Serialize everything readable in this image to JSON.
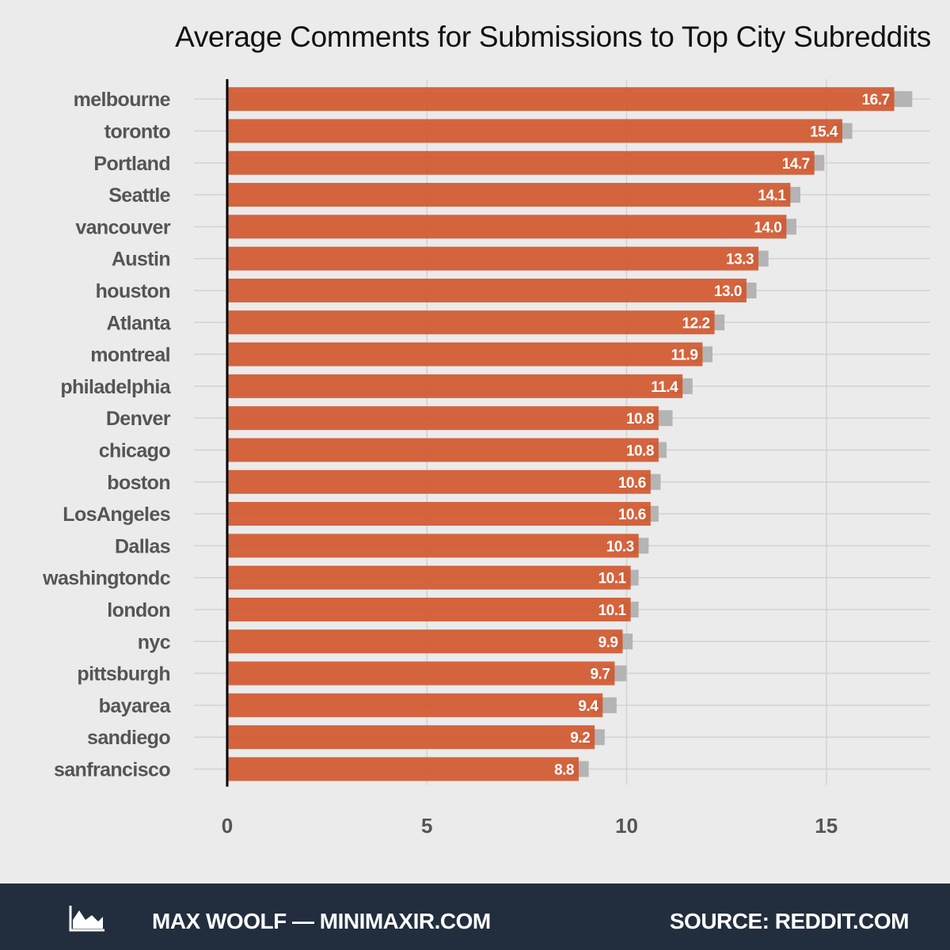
{
  "chart_data": {
    "type": "bar",
    "orientation": "horizontal",
    "title": "Average Comments for Submissions to Top City Subreddits",
    "categories": [
      "melbourne",
      "toronto",
      "Portland",
      "Seattle",
      "vancouver",
      "Austin",
      "houston",
      "Atlanta",
      "montreal",
      "philadelphia",
      "Denver",
      "chicago",
      "boston",
      "LosAngeles",
      "Dallas",
      "washingtondc",
      "london",
      "nyc",
      "pittsburgh",
      "bayarea",
      "sandiego",
      "sanfrancisco"
    ],
    "values": [
      16.7,
      15.4,
      14.7,
      14.1,
      14.0,
      13.3,
      13.0,
      12.2,
      11.9,
      11.4,
      10.8,
      10.8,
      10.6,
      10.6,
      10.3,
      10.1,
      10.1,
      9.9,
      9.7,
      9.4,
      9.2,
      8.8
    ],
    "data_labels": [
      "16.7",
      "15.4",
      "14.7",
      "14.1",
      "14.0",
      "13.3",
      "13.0",
      "12.2",
      "11.9",
      "11.4",
      "10.8",
      "10.8",
      "10.6",
      "10.6",
      "10.3",
      "10.1",
      "10.1",
      "9.9",
      "9.7",
      "9.4",
      "9.2",
      "8.8"
    ],
    "error_upper": [
      17.15,
      15.65,
      14.95,
      14.35,
      14.25,
      13.55,
      13.25,
      12.45,
      12.15,
      11.65,
      11.15,
      11.0,
      10.85,
      10.8,
      10.55,
      10.3,
      10.3,
      10.15,
      10.0,
      9.75,
      9.45,
      9.05
    ],
    "xlim": [
      0,
      17.6
    ],
    "xticks": [
      0,
      5,
      10,
      15
    ],
    "xtick_labels": [
      "0",
      "5",
      "10",
      "15"
    ],
    "xlabel": "",
    "ylabel": "",
    "grid": true,
    "legend": "none",
    "colors": {
      "bar": "#d0582f",
      "error_band": "#b4b4b4",
      "background": "#ebebeb",
      "grid": "#d2d2d2",
      "bar_label": "#ffffff",
      "axis_text": "#555555"
    }
  },
  "footer": {
    "logo_icon": "area-chart-icon",
    "author": "MAX WOOLF — MINIMAXIR.COM",
    "source": "SOURCE: REDDIT.COM",
    "background": "#222e3d"
  }
}
